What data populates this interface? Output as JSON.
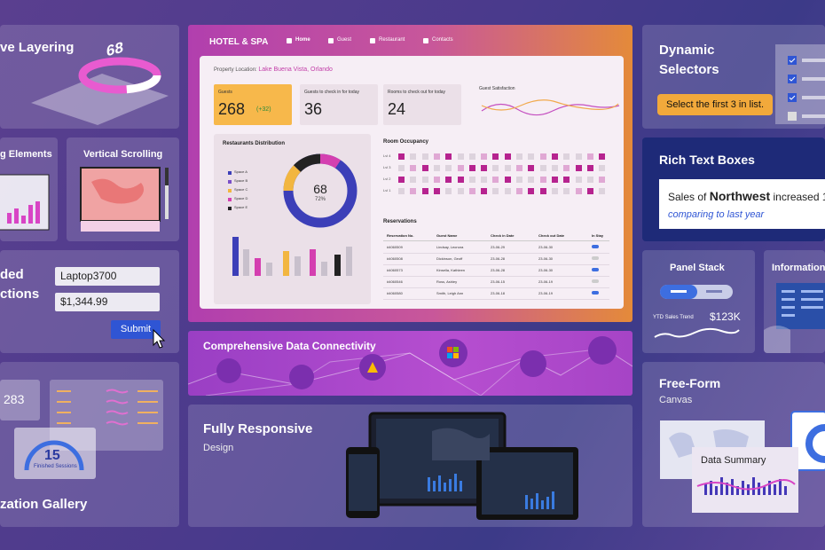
{
  "left": {
    "layering_title": "ve Layering",
    "layering_value": "68",
    "elements_title": "g Elements",
    "scrolling_title": "Vertical Scrolling",
    "embedded_title_1": "ded",
    "embedded_title_2": "ctions",
    "input_1": "Laptop3700",
    "input_2": "$1,344.99",
    "submit": "Submit",
    "gallery_value_1": "283",
    "gallery_value_2": "15",
    "gallery_caption": "Finished Sessions",
    "gallery_title": "zation Gallery"
  },
  "dashboard": {
    "brand": "HOTEL & SPA",
    "nav": [
      "Home",
      "Guest",
      "Restaurant",
      "Contacts"
    ],
    "location_label": "Property Location:",
    "location": "Lake Buena Vista, Orlando",
    "kpis": [
      {
        "label": "Guests",
        "value": "268",
        "delta": "(+32)"
      },
      {
        "label": "Guests to check in for today",
        "value": "36"
      },
      {
        "label": "Rooms to check out for today",
        "value": "24"
      }
    ],
    "satisfaction_title": "Guest Satisfaction",
    "restaurants_title": "Restaurants Distribution",
    "legend": [
      "Space A",
      "Space B",
      "Space C",
      "Space D",
      "Space E"
    ],
    "donut_value": "68",
    "donut_percent": "72%",
    "occupancy_title": "Room Occupancy",
    "levels": [
      "Lvl 4",
      "Lvl 3",
      "Lvl 2",
      "Lvl 1"
    ],
    "reservations_title": "Reservations",
    "table": {
      "headers": [
        "Reservation No.",
        "Guest Name",
        "Check in Date",
        "Check out Date",
        "In Stay"
      ],
      "rows": [
        [
          "#4060509",
          "Lindsay, Leonora",
          "23-06-29",
          "23-06-30"
        ],
        [
          "#4060508",
          "Dickinson, Geoff",
          "23-06-28",
          "23-06-30"
        ],
        [
          "#4060573",
          "Kinsella, Kathleen",
          "23-06-28",
          "23-06-30"
        ],
        [
          "#4060546",
          "Ross, Ashley",
          "23-06-15",
          "23-06-19"
        ],
        [
          "#4060580",
          "Smith, Leigh Ann",
          "23-06-18",
          "23-06-19"
        ]
      ]
    }
  },
  "connectivity": {
    "title": "Comprehensive Data Connectivity"
  },
  "responsive": {
    "title": "Fully Responsive",
    "subtitle": "Design"
  },
  "right": {
    "selectors_title_1": "Dynamic",
    "selectors_title_2": "Selectors",
    "selectors_tip": "Select the first 3 in list.",
    "rich_title": "Rich Text Boxes",
    "rich_text_1": "Sales of ",
    "rich_text_bold": "Northwest",
    "rich_text_2": " increased 1",
    "rich_text_3": "comparing to last year",
    "panel_stack_title": "Panel Stack",
    "ytd_label": "YTD Sales Trend",
    "ytd_value": "$123K",
    "information_title": "Information",
    "freeform_title": "Free-Form",
    "freeform_subtitle": "Canvas",
    "summary_title": "Data Summary"
  }
}
